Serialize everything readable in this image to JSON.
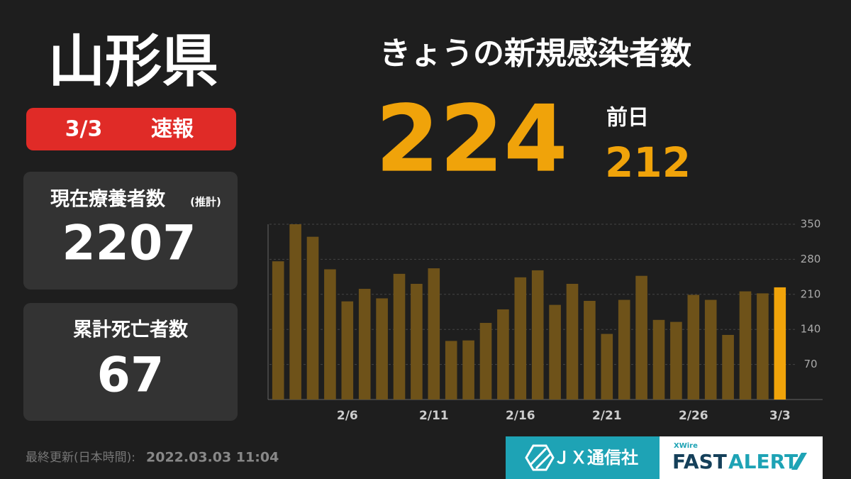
{
  "header": {
    "prefecture": "山形県",
    "date": "3/3",
    "tag": "速報"
  },
  "headline": {
    "title": "きょうの新規感染者数",
    "today": 224,
    "previous_label": "前日",
    "previous": 212
  },
  "cards": [
    {
      "label": "現在療養者数",
      "note": "(推計)",
      "value": 2207
    },
    {
      "label": "累計死亡者数",
      "value": 67
    }
  ],
  "footer": {
    "updated_label": "最終更新(日本時間):",
    "updated": "2022.03.03 11:04"
  },
  "logos": {
    "jx": "ＪＸ通信社",
    "xwire": "XWire",
    "fast": "FAST",
    "alert": "ALERT"
  },
  "chart_data": {
    "type": "bar",
    "categories": [
      null,
      null,
      null,
      null,
      "2/6",
      null,
      null,
      null,
      null,
      "2/11",
      null,
      null,
      null,
      null,
      "2/16",
      null,
      null,
      null,
      null,
      "2/21",
      null,
      null,
      null,
      null,
      "2/26",
      null,
      null,
      null,
      null,
      "3/3"
    ],
    "values": [
      276,
      350,
      325,
      260,
      196,
      221,
      202,
      251,
      231,
      262,
      117,
      118,
      153,
      180,
      244,
      258,
      189,
      231,
      197,
      131,
      199,
      247,
      159,
      155,
      209,
      199,
      129,
      216,
      212,
      224
    ],
    "color": "#6e5219",
    "latest_color": "#f0a30a",
    "ylim": [
      0,
      350
    ],
    "yticks": [
      70,
      140,
      210,
      280,
      350
    ],
    "grid": true
  }
}
